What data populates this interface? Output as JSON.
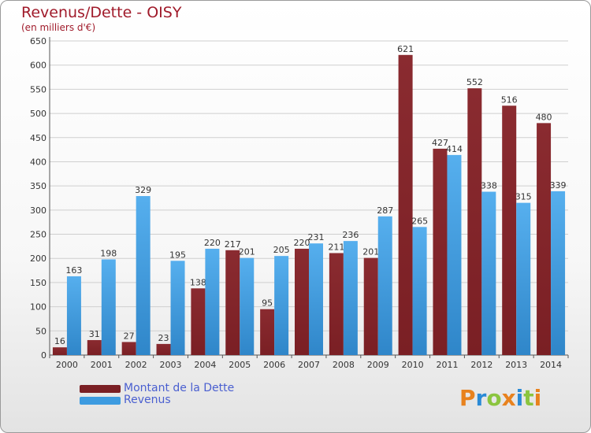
{
  "title": "Revenus/Dette - OISY",
  "subtitle": "(en milliers d'€)",
  "colors": {
    "dette": "#7a1f24",
    "revenus": "#3d9be0",
    "text": "#a01a2a",
    "legend_text": "#4a5fd0"
  },
  "legend": {
    "dette_label": "Montant de la Dette",
    "revenus_label": "Revenus"
  },
  "logo": {
    "text": "Proxiti"
  },
  "chart_data": {
    "type": "bar",
    "categories": [
      "2000",
      "2001",
      "2002",
      "2003",
      "2004",
      "2005",
      "2006",
      "2007",
      "2008",
      "2009",
      "2010",
      "2011",
      "2012",
      "2013",
      "2014"
    ],
    "series": [
      {
        "name": "Montant de la Dette",
        "values": [
          16,
          31,
          27,
          23,
          138,
          217,
          95,
          220,
          211,
          201,
          621,
          427,
          552,
          516,
          480
        ]
      },
      {
        "name": "Revenus",
        "values": [
          163,
          198,
          329,
          195,
          220,
          201,
          205,
          231,
          236,
          287,
          265,
          414,
          338,
          315,
          339
        ]
      }
    ],
    "ylim": [
      0,
      650
    ],
    "yticks": [
      0,
      50,
      100,
      150,
      200,
      250,
      300,
      350,
      400,
      450,
      500,
      550,
      600,
      650
    ],
    "grid": true,
    "legend_position": "bottom-left"
  }
}
